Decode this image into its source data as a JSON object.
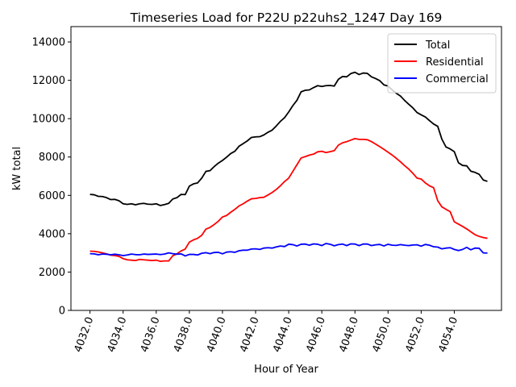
{
  "chart_data": {
    "type": "line",
    "title": "Timeseries Load for P22U p22uhs2_1247  Day 169",
    "xlabel": "Hour of Year",
    "ylabel": "kW total",
    "xlim": [
      4030.85,
      4056.85
    ],
    "ylim": [
      0,
      14800
    ],
    "xticks": [
      4032,
      4034,
      4036,
      4038,
      4040,
      4042,
      4044,
      4046,
      4048,
      4050,
      4052,
      4054
    ],
    "xtick_labels": [
      "4032.0",
      "4034.0",
      "4036.0",
      "4038.0",
      "4040.0",
      "4042.0",
      "4044.0",
      "4046.0",
      "4048.0",
      "4050.0",
      "4052.0",
      "4054.0"
    ],
    "yticks": [
      0,
      2000,
      4000,
      6000,
      8000,
      10000,
      12000,
      14000
    ],
    "ytick_labels": [
      "0",
      "2000",
      "4000",
      "6000",
      "8000",
      "10000",
      "12000",
      "14000"
    ],
    "grid": false,
    "legend": {
      "placement": "top-right",
      "entries": [
        "Total",
        "Residential",
        "Commercial"
      ]
    },
    "x_start": 4032.0,
    "x_step": 0.25,
    "series": [
      {
        "name": "Total",
        "color": "#000000",
        "values": [
          6050,
          6030,
          5950,
          5940,
          5880,
          5780,
          5790,
          5720,
          5560,
          5530,
          5560,
          5510,
          5560,
          5580,
          5540,
          5530,
          5560,
          5470,
          5520,
          5580,
          5810,
          5880,
          6050,
          6040,
          6480,
          6600,
          6650,
          6900,
          7250,
          7290,
          7500,
          7680,
          7820,
          7990,
          8180,
          8300,
          8560,
          8700,
          8840,
          9020,
          9050,
          9060,
          9150,
          9290,
          9400,
          9620,
          9860,
          10050,
          10350,
          10680,
          10960,
          11400,
          11480,
          11500,
          11620,
          11720,
          11680,
          11720,
          11730,
          11700,
          12050,
          12200,
          12180,
          12350,
          12420,
          12300,
          12380,
          12360,
          12180,
          12090,
          11980,
          11760,
          11700,
          11500,
          11320,
          11180,
          10950,
          10750,
          10560,
          10320,
          10200,
          10090,
          9900,
          9720,
          9600,
          8930,
          8520,
          8420,
          8280,
          7700,
          7560,
          7540,
          7260,
          7200,
          7100,
          6800,
          6730
        ]
      },
      {
        "name": "Residential",
        "color": "#ff0000",
        "values": [
          3090,
          3080,
          3050,
          3000,
          2950,
          2880,
          2860,
          2820,
          2700,
          2640,
          2620,
          2600,
          2660,
          2640,
          2620,
          2600,
          2620,
          2560,
          2580,
          2580,
          2850,
          2950,
          3100,
          3200,
          3560,
          3680,
          3760,
          3920,
          4240,
          4330,
          4480,
          4650,
          4870,
          4950,
          5120,
          5270,
          5450,
          5560,
          5700,
          5820,
          5840,
          5880,
          5900,
          6020,
          6150,
          6310,
          6500,
          6720,
          6900,
          7250,
          7600,
          7950,
          8020,
          8100,
          8150,
          8270,
          8300,
          8230,
          8280,
          8330,
          8620,
          8740,
          8800,
          8880,
          8960,
          8920,
          8920,
          8900,
          8800,
          8670,
          8540,
          8400,
          8250,
          8100,
          7930,
          7750,
          7550,
          7370,
          7150,
          6900,
          6850,
          6650,
          6500,
          6400,
          5720,
          5400,
          5270,
          5150,
          4620,
          4500,
          4380,
          4250,
          4100,
          3950,
          3860,
          3800,
          3760
        ]
      },
      {
        "name": "Commercial",
        "color": "#0000ff",
        "values": [
          2960,
          2950,
          2900,
          2940,
          2930,
          2900,
          2930,
          2900,
          2860,
          2890,
          2940,
          2910,
          2900,
          2940,
          2920,
          2930,
          2940,
          2910,
          2940,
          3000,
          2960,
          2930,
          2950,
          2840,
          2920,
          2920,
          2890,
          2980,
          3010,
          2960,
          3020,
          3030,
          2950,
          3040,
          3060,
          3030,
          3110,
          3140,
          3140,
          3200,
          3210,
          3180,
          3250,
          3270,
          3250,
          3310,
          3360,
          3330,
          3450,
          3430,
          3360,
          3450,
          3460,
          3400,
          3470,
          3450,
          3380,
          3490,
          3450,
          3370,
          3430,
          3460,
          3380,
          3470,
          3460,
          3380,
          3460,
          3460,
          3380,
          3420,
          3440,
          3360,
          3450,
          3400,
          3390,
          3430,
          3400,
          3380,
          3410,
          3420,
          3350,
          3440,
          3400,
          3320,
          3300,
          3210,
          3250,
          3270,
          3180,
          3120,
          3180,
          3290,
          3160,
          3250,
          3240,
          3000,
          2990
        ]
      }
    ]
  }
}
